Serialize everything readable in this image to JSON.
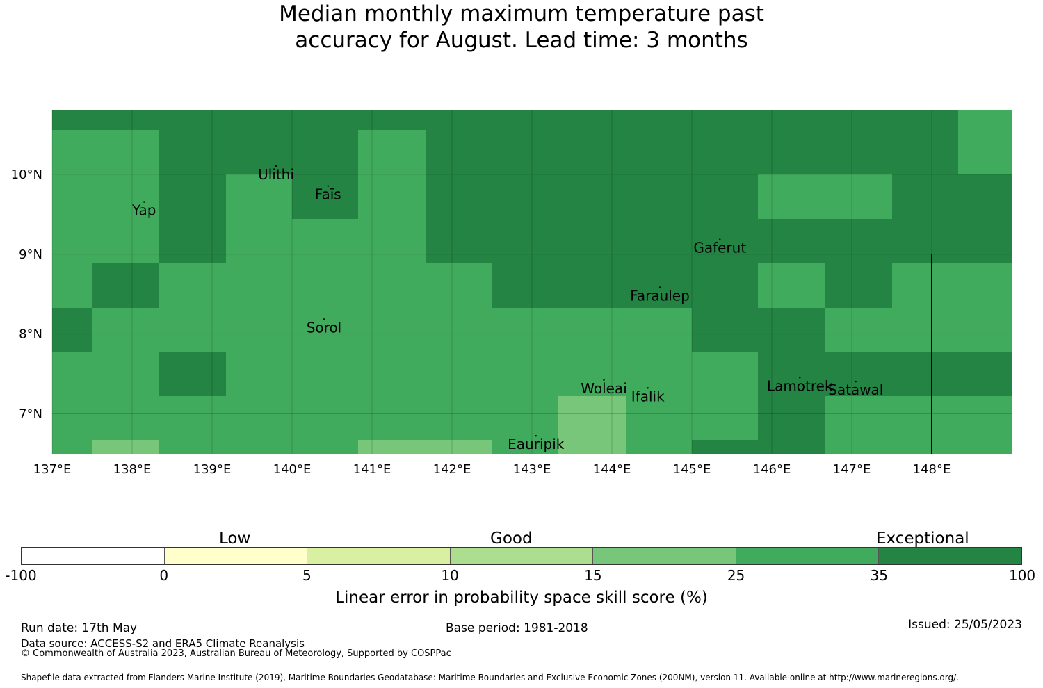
{
  "title_line1": "Median monthly maximum temperature past",
  "title_line2": "accuracy for August. Lead time: 3 months",
  "map": {
    "lon_range": [
      137.0,
      149.0
    ],
    "lat_range": [
      6.5,
      10.8
    ],
    "lon_ticks": [
      {
        "value": 137,
        "label": "137°E"
      },
      {
        "value": 138,
        "label": "138°E"
      },
      {
        "value": 139,
        "label": "139°E"
      },
      {
        "value": 140,
        "label": "140°E"
      },
      {
        "value": 141,
        "label": "141°E"
      },
      {
        "value": 142,
        "label": "142°E"
      },
      {
        "value": 143,
        "label": "143°E"
      },
      {
        "value": 144,
        "label": "144°E"
      },
      {
        "value": 145,
        "label": "145°E"
      },
      {
        "value": 146,
        "label": "146°E"
      },
      {
        "value": 147,
        "label": "147°E"
      },
      {
        "value": 148,
        "label": "148°E"
      }
    ],
    "lat_ticks": [
      {
        "value": 10,
        "label": "10°N"
      },
      {
        "value": 9,
        "label": "9°N"
      },
      {
        "value": 8,
        "label": "8°N"
      },
      {
        "value": 7,
        "label": "7°N"
      }
    ],
    "grid_lon_edges": [
      137.0,
      137.5,
      138.33,
      139.17,
      140.0,
      140.83,
      141.67,
      142.5,
      143.33,
      144.17,
      145.0,
      145.83,
      146.67,
      147.5,
      148.33,
      149.0
    ],
    "grid_lat_edges": [
      10.8,
      10.56,
      10.0,
      9.44,
      8.89,
      8.33,
      7.78,
      7.22,
      6.67,
      6.5
    ],
    "grid_categories": [
      [
        6,
        6,
        6,
        6,
        6,
        6,
        6,
        6,
        6,
        6,
        6,
        6,
        6,
        6,
        5
      ],
      [
        5,
        5,
        6,
        6,
        6,
        5,
        6,
        6,
        6,
        6,
        6,
        6,
        6,
        6,
        5
      ],
      [
        5,
        5,
        6,
        5,
        6,
        5,
        6,
        6,
        6,
        6,
        6,
        5,
        5,
        6,
        6
      ],
      [
        5,
        5,
        6,
        5,
        5,
        5,
        6,
        6,
        6,
        6,
        6,
        6,
        6,
        6,
        6
      ],
      [
        5,
        6,
        5,
        5,
        5,
        5,
        5,
        6,
        6,
        6,
        6,
        5,
        6,
        5,
        5
      ],
      [
        6,
        5,
        5,
        5,
        5,
        5,
        5,
        5,
        5,
        5,
        6,
        6,
        5,
        5,
        5
      ],
      [
        5,
        5,
        6,
        5,
        5,
        5,
        5,
        5,
        5,
        5,
        5,
        6,
        6,
        6,
        6
      ],
      [
        5,
        5,
        5,
        5,
        5,
        5,
        5,
        5,
        4,
        5,
        5,
        6,
        5,
        5,
        5
      ],
      [
        5,
        4,
        5,
        5,
        5,
        4,
        4,
        5,
        4,
        5,
        6,
        6,
        5,
        5,
        5
      ]
    ],
    "islands": [
      {
        "name": "Ulithi",
        "lon": 139.8,
        "lat": 10.0
      },
      {
        "name": "Faīs",
        "lon": 140.45,
        "lat": 9.75
      },
      {
        "name": "Yap",
        "lon": 138.15,
        "lat": 9.55
      },
      {
        "name": "Gaferut",
        "lon": 145.35,
        "lat": 9.08
      },
      {
        "name": "Faraulep",
        "lon": 144.6,
        "lat": 8.48
      },
      {
        "name": "Sorol",
        "lon": 140.4,
        "lat": 8.08
      },
      {
        "name": "Woleai",
        "lon": 143.9,
        "lat": 7.32
      },
      {
        "name": "Ifalik",
        "lon": 144.45,
        "lat": 7.22
      },
      {
        "name": "Lamotrek",
        "lon": 146.35,
        "lat": 7.35
      },
      {
        "name": "Satawal",
        "lon": 147.05,
        "lat": 7.3
      },
      {
        "name": "Eauripik",
        "lon": 143.05,
        "lat": 6.62
      }
    ],
    "boundary_line": {
      "lon": 148.0,
      "lat_from": 6.5,
      "lat_to": 9.0
    }
  },
  "colorbar": {
    "categories": [
      {
        "range": "-100 to 0",
        "color": "#ffffff"
      },
      {
        "range": "0 to 5",
        "color": "#ffffcc"
      },
      {
        "range": "5 to 10",
        "color": "#d9f0a3"
      },
      {
        "range": "10 to 15",
        "color": "#addd8e"
      },
      {
        "range": "15 to 25",
        "color": "#78c679"
      },
      {
        "range": "25 to 35",
        "color": "#41ab5d"
      },
      {
        "range": "35 to 100",
        "color": "#238443"
      }
    ],
    "tick_labels": [
      "-100",
      "0",
      "5",
      "10",
      "15",
      "25",
      "35",
      "100"
    ],
    "band_low": "Low",
    "band_good": "Good",
    "band_exceptional": "Exceptional",
    "axis_title": "Linear error in probability space skill score (%)"
  },
  "footer": {
    "run_date": "Run date: 17th May",
    "data_source": "Data source: ACCESS-S2 and ERA5 Climate Reanalysis",
    "copyright": "© Commonwealth of Australia 2023, Australian Bureau of Meteorology, Supported by COSPPac",
    "base_period": "Base period: 1981-2018",
    "issued": "Issued: 25/05/2023",
    "shapefile": "Shapefile data extracted from Flanders Marine Institute (2019), Maritime Boundaries Geodatabase: Maritime Boundaries and Exclusive Economic Zones (200NM), version 11. Available online at http://www.marineregions.org/."
  }
}
